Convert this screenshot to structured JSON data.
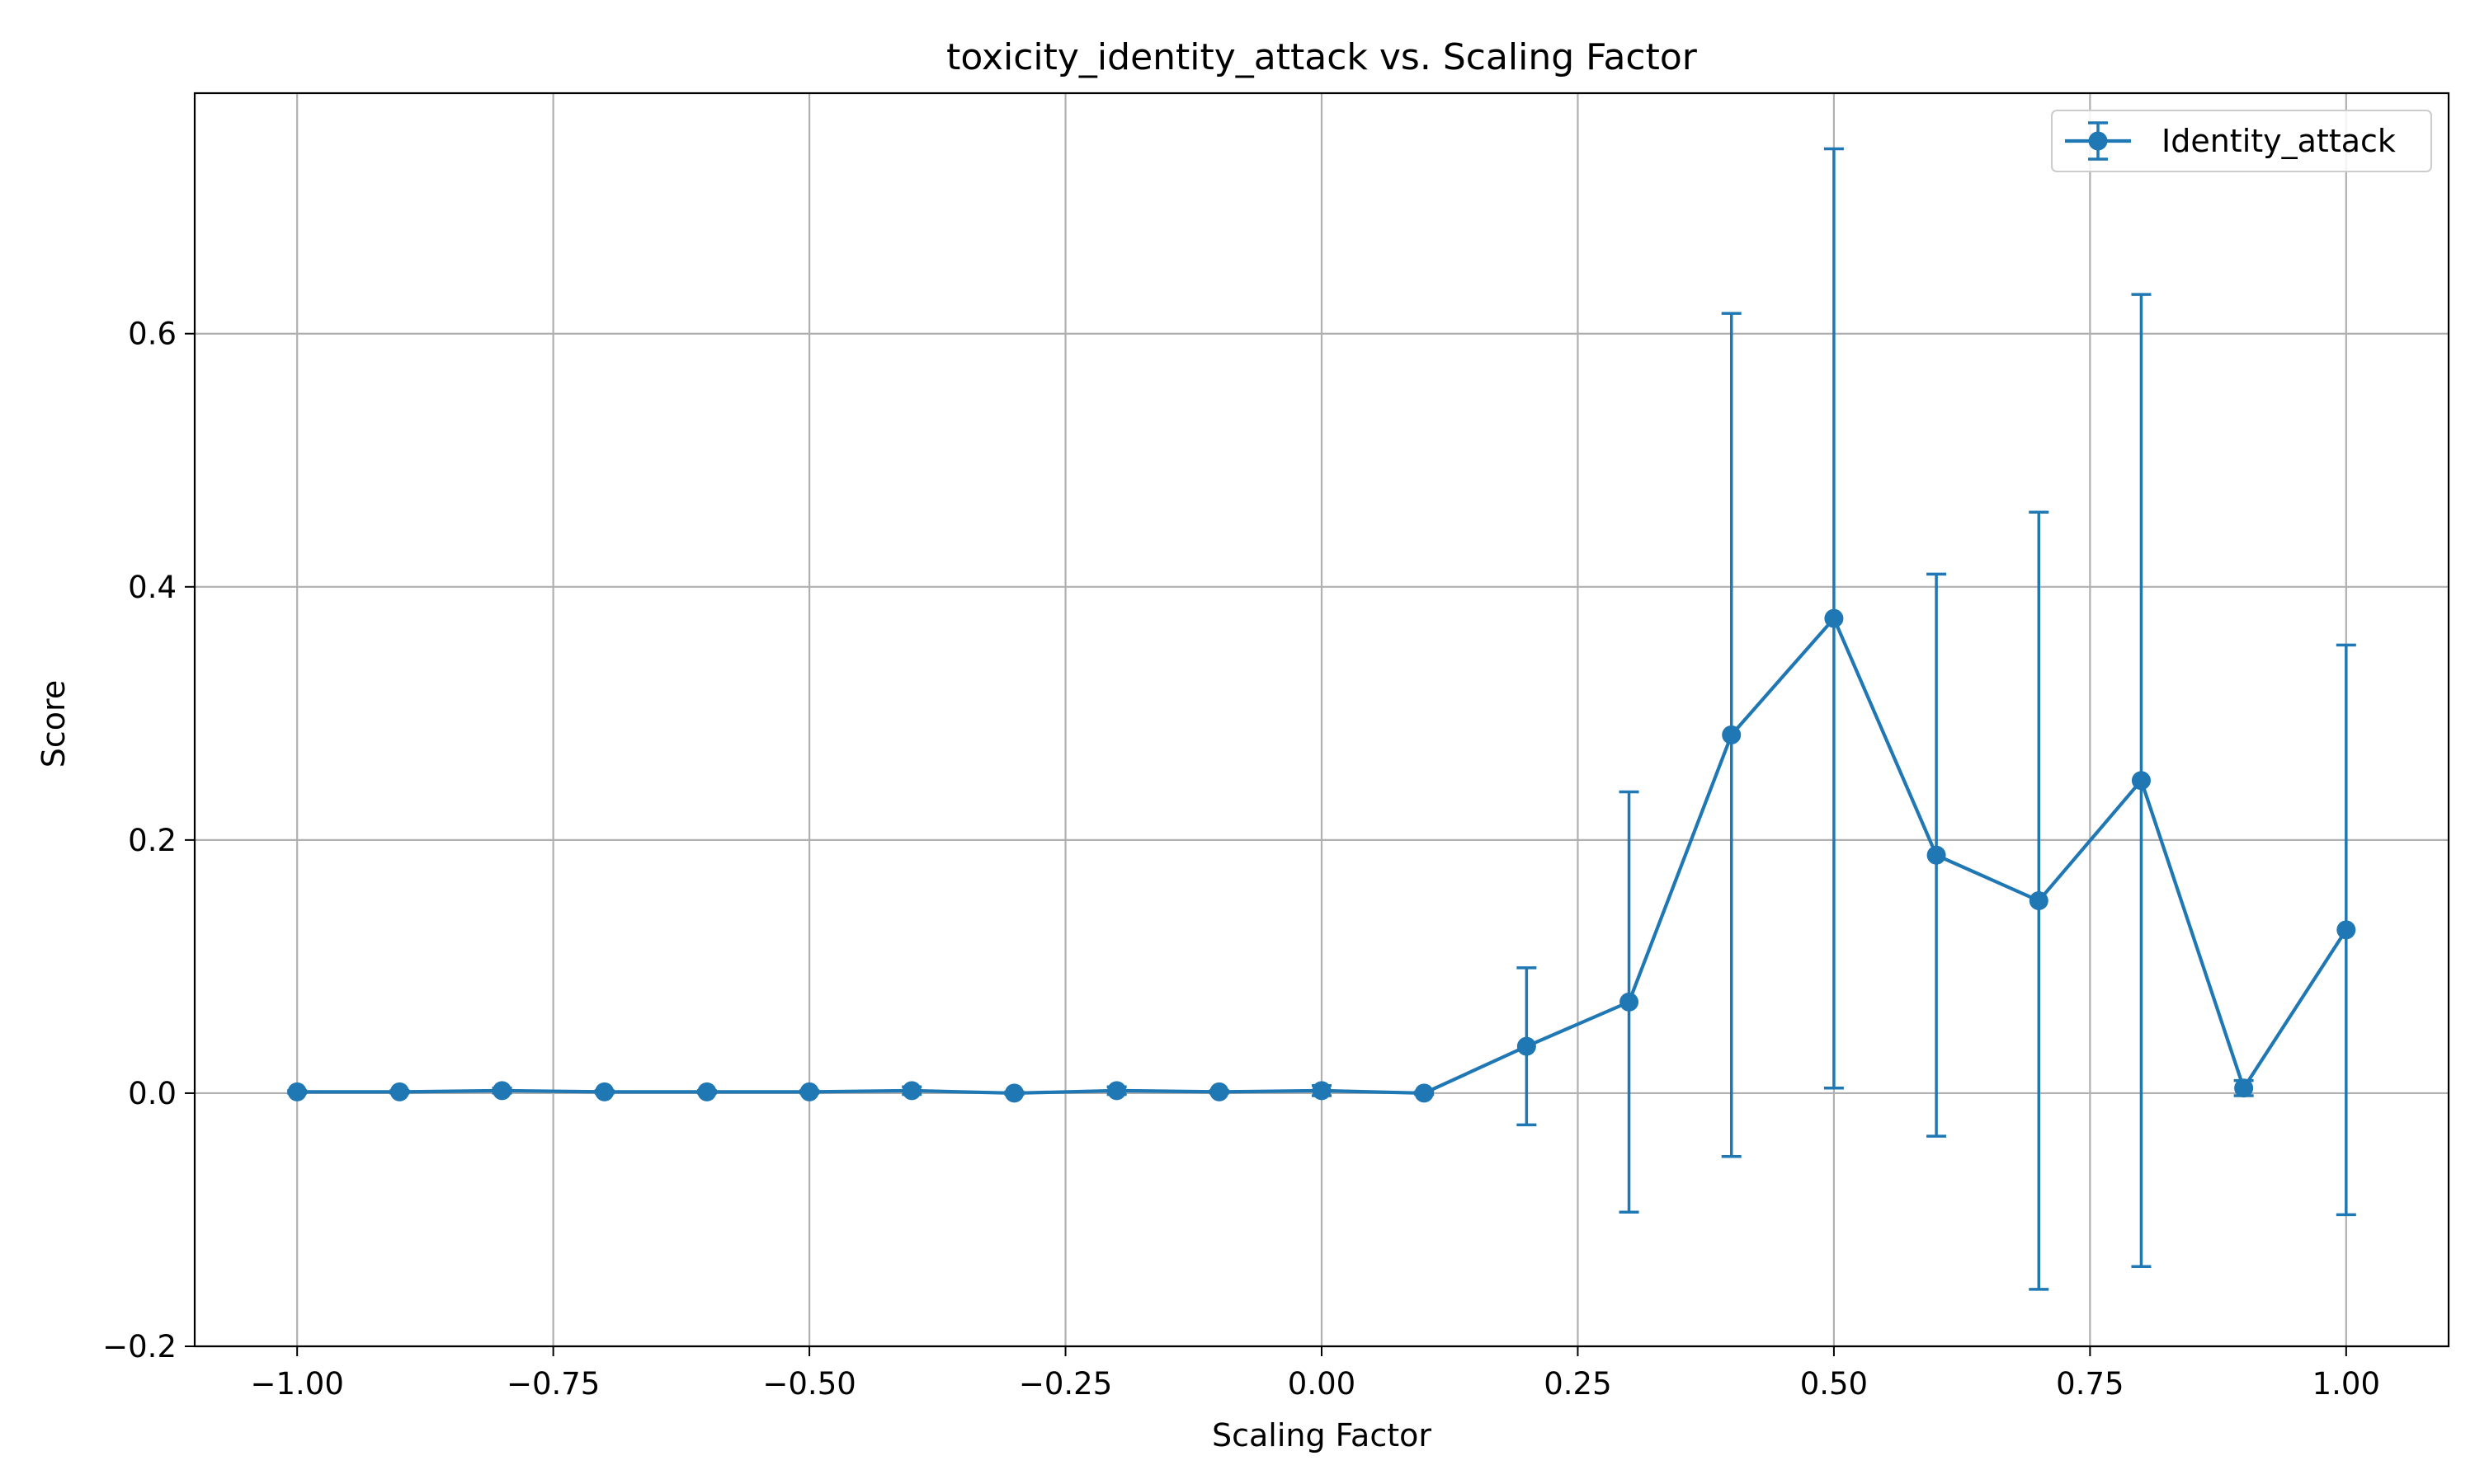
{
  "chart_data": {
    "type": "line",
    "title": "toxicity_identity_attack vs. Scaling Factor",
    "xlabel": "Scaling Factor",
    "ylabel": "Score",
    "xlim": [
      -1.1,
      1.1
    ],
    "ylim": [
      -0.2,
      0.79
    ],
    "xticks": [
      -1.0,
      -0.75,
      -0.5,
      -0.25,
      0.0,
      0.25,
      0.5,
      0.75,
      1.0
    ],
    "xtick_labels": [
      "−1.00",
      "−0.75",
      "−0.50",
      "−0.25",
      "0.00",
      "0.25",
      "0.50",
      "0.75",
      "1.00"
    ],
    "yticks": [
      -0.2,
      0.0,
      0.2,
      0.4,
      0.6
    ],
    "ytick_labels": [
      "−0.2",
      "0.0",
      "0.2",
      "0.4",
      "0.6"
    ],
    "grid": true,
    "legend_position": "top-right",
    "color": "#1f77b4",
    "series": [
      {
        "name": "Identity_attack",
        "x": [
          -1.0,
          -0.9,
          -0.8,
          -0.7,
          -0.6,
          -0.5,
          -0.4,
          -0.3,
          -0.2,
          -0.1,
          0.0,
          0.1,
          0.2,
          0.3,
          0.4,
          0.5,
          0.6,
          0.7,
          0.8,
          0.9,
          1.0
        ],
        "y": [
          0.001,
          0.001,
          0.002,
          0.001,
          0.001,
          0.001,
          0.002,
          0.0,
          0.002,
          0.001,
          0.002,
          0.0,
          0.037,
          0.072,
          0.283,
          0.375,
          0.188,
          0.152,
          0.247,
          0.004,
          0.129
        ],
        "err": [
          0.001,
          0.001,
          0.002,
          0.001,
          0.001,
          0.001,
          0.003,
          0.001,
          0.003,
          0.001,
          0.004,
          0.001,
          0.062,
          0.166,
          0.333,
          0.371,
          0.222,
          0.307,
          0.384,
          0.006,
          0.225
        ]
      }
    ]
  }
}
